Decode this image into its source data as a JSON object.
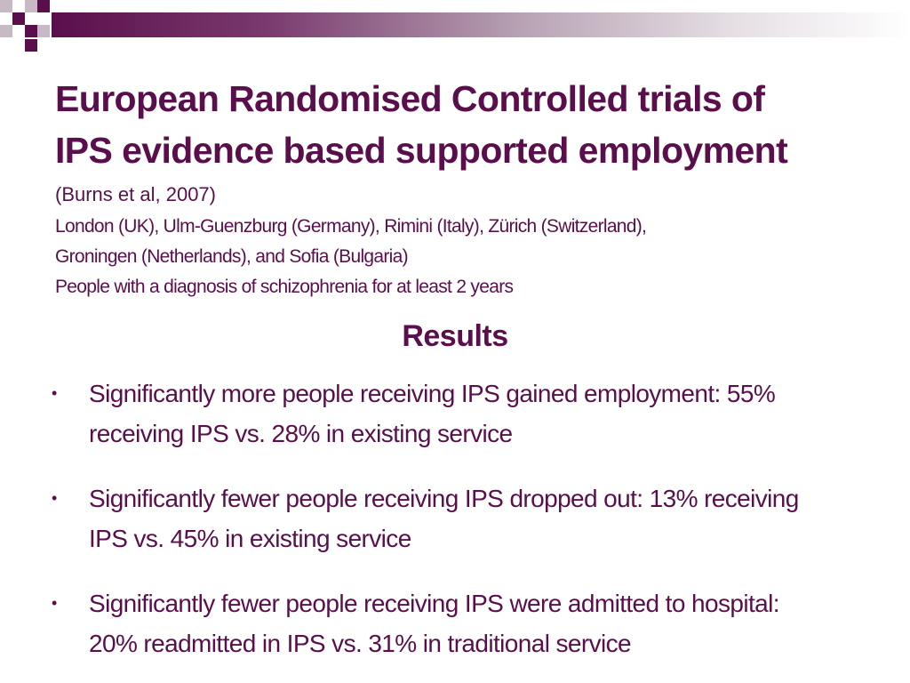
{
  "slide": {
    "title_lines": [
      "European Randomised Controlled trials of",
      "IPS evidence based supported employment"
    ],
    "citation": "(Burns et al, 2007)",
    "info_lines": [
      "London (UK), Ulm-Guenzburg (Germany), Rimini (Italy), Zürich (Switzerland),",
      "Groningen (Netherlands), and Sofia (Bulgaria)",
      "People with a diagnosis of schizophrenia for at least 2 years"
    ],
    "results_heading": "Results",
    "bullet_symbol": "•",
    "bullets": [
      {
        "lines": [
          "Significantly more people receiving IPS gained employment: 55%",
          "receiving IPS vs. 28% in existing service"
        ]
      },
      {
        "lines": [
          "Significantly fewer people receiving IPS dropped out: 13% receiving",
          "IPS vs. 45% in existing service"
        ]
      },
      {
        "lines": [
          "Significantly fewer people receiving IPS were admitted to hospital:",
          "20% readmitted in IPS vs. 31% in traditional service"
        ]
      }
    ]
  },
  "colors": {
    "primary": "#5a0f4c",
    "accent_light": "#c9b8c6",
    "background": "#ffffff"
  }
}
